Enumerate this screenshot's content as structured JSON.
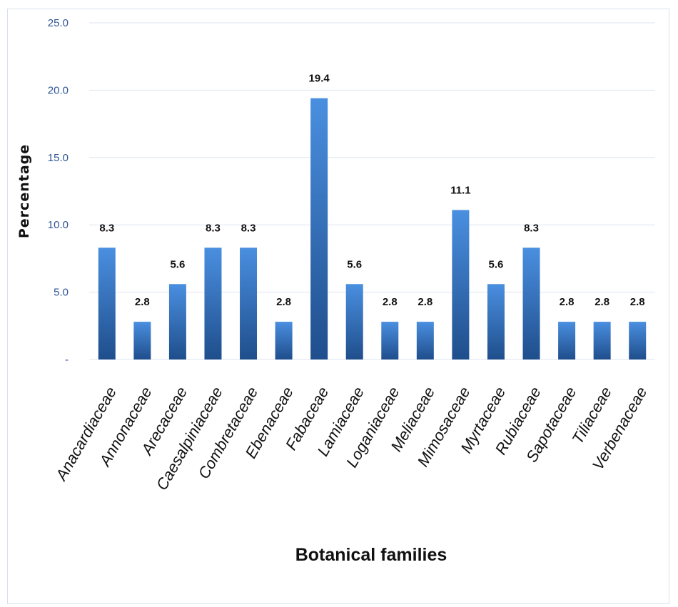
{
  "chart_data": {
    "type": "bar",
    "categories": [
      "Anacardiaceae",
      "Annonaceae",
      "Arecaceae",
      "Caesalpiniaceae",
      "Combretaceae",
      "Ebenaceae",
      "Fabaceae",
      "Lamiaceae",
      "Loganiaceae",
      "Meliaceae",
      "Mimosaceae",
      "Myrtaceae",
      "Rubiaceae",
      "Sapotaceae",
      "Tiliaceae",
      "Verbenaceae"
    ],
    "values": [
      8.3,
      2.8,
      5.6,
      8.3,
      8.3,
      2.8,
      19.4,
      5.6,
      2.8,
      2.8,
      11.1,
      5.6,
      8.3,
      2.8,
      2.8,
      2.8
    ],
    "data_labels": [
      "8.3",
      "2.8",
      "5.6",
      "8.3",
      "8.3",
      "2.8",
      "19.4",
      "5.6",
      "2.8",
      "2.8",
      "11.1",
      "5.6",
      "8.3",
      "2.8",
      "2.8",
      "2.8"
    ],
    "title": "",
    "xlabel": "Botanical families",
    "ylabel": "Percentage",
    "ylim": [
      0,
      25
    ],
    "yticks": [
      "-",
      "5.0",
      "10.0",
      "15.0",
      "20.0",
      "25.0"
    ],
    "grid": true,
    "bar_color_top": "#4a8fe0",
    "bar_color_bottom": "#1f4e8c"
  }
}
